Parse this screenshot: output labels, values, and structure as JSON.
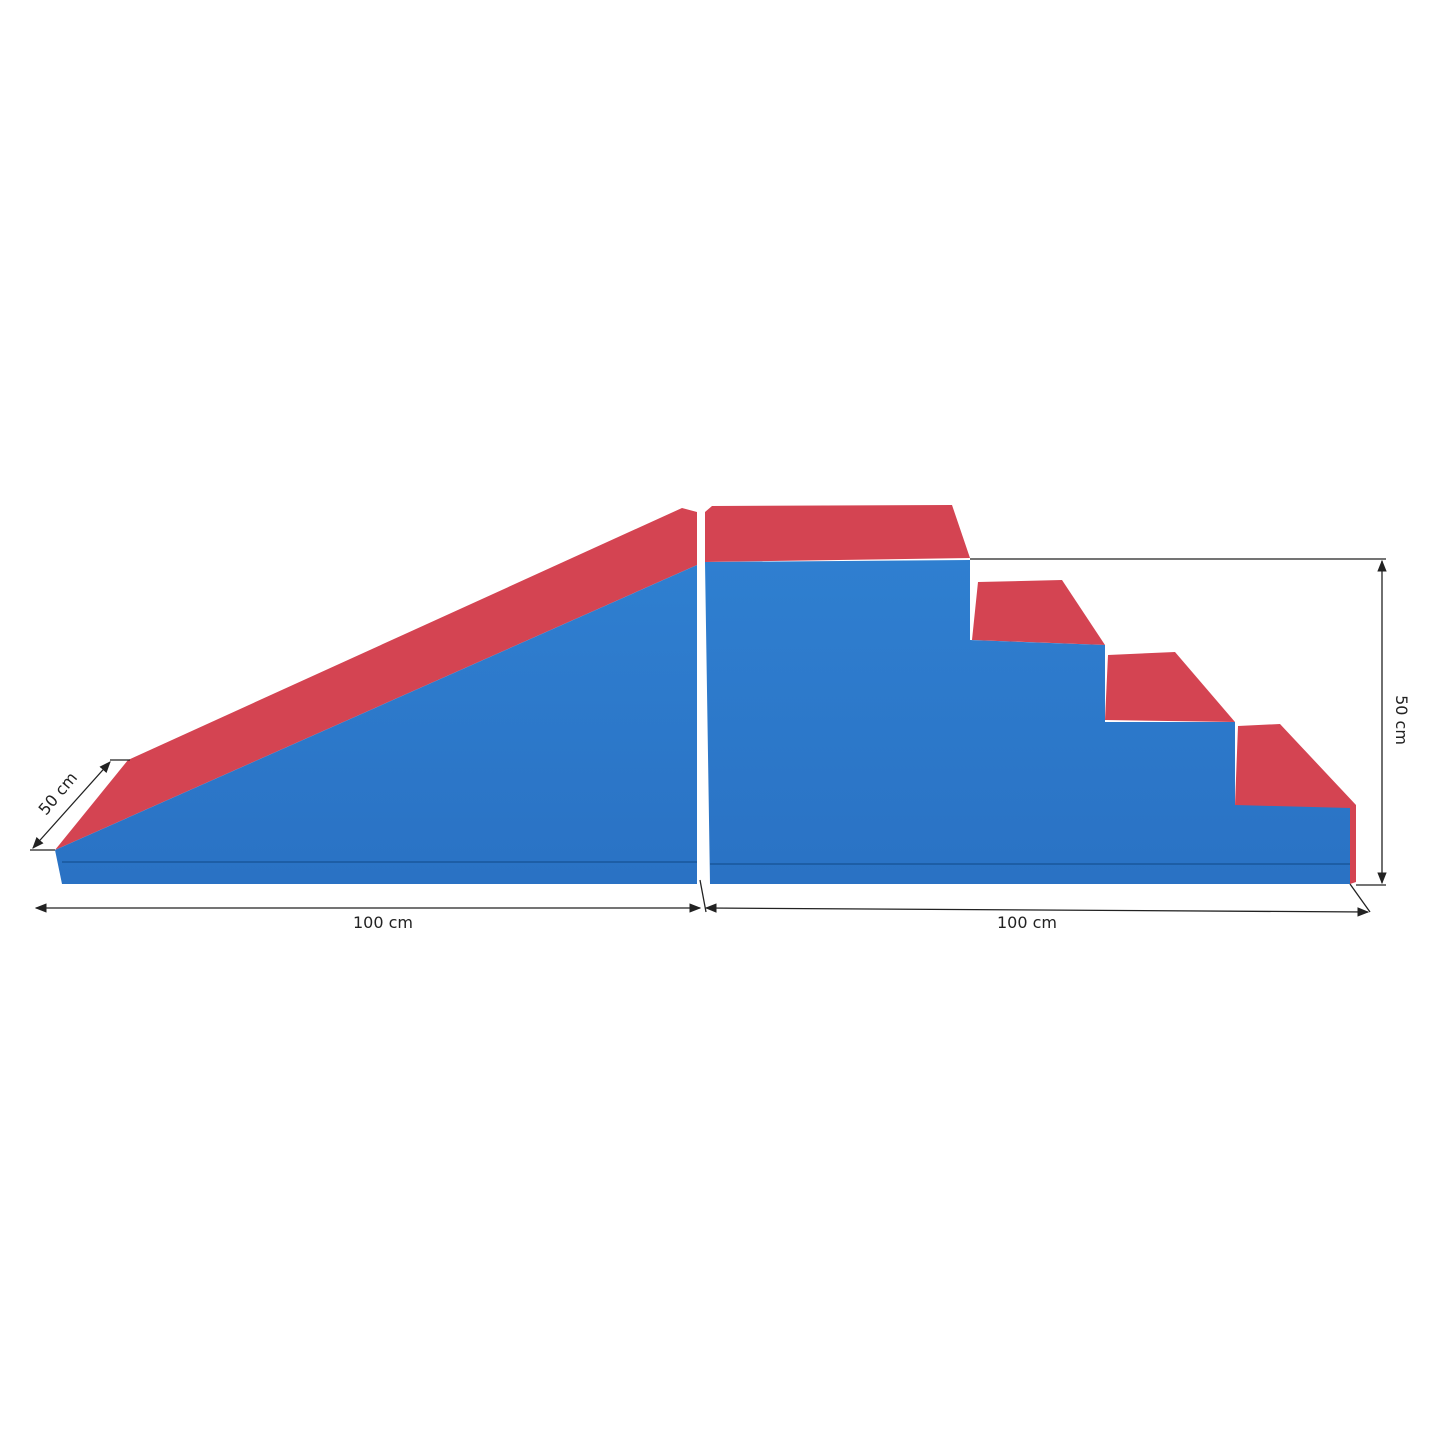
{
  "dimensions": {
    "depth": "50 cm",
    "width_left": "100 cm",
    "width_right": "100 cm",
    "height": "50 cm"
  }
}
